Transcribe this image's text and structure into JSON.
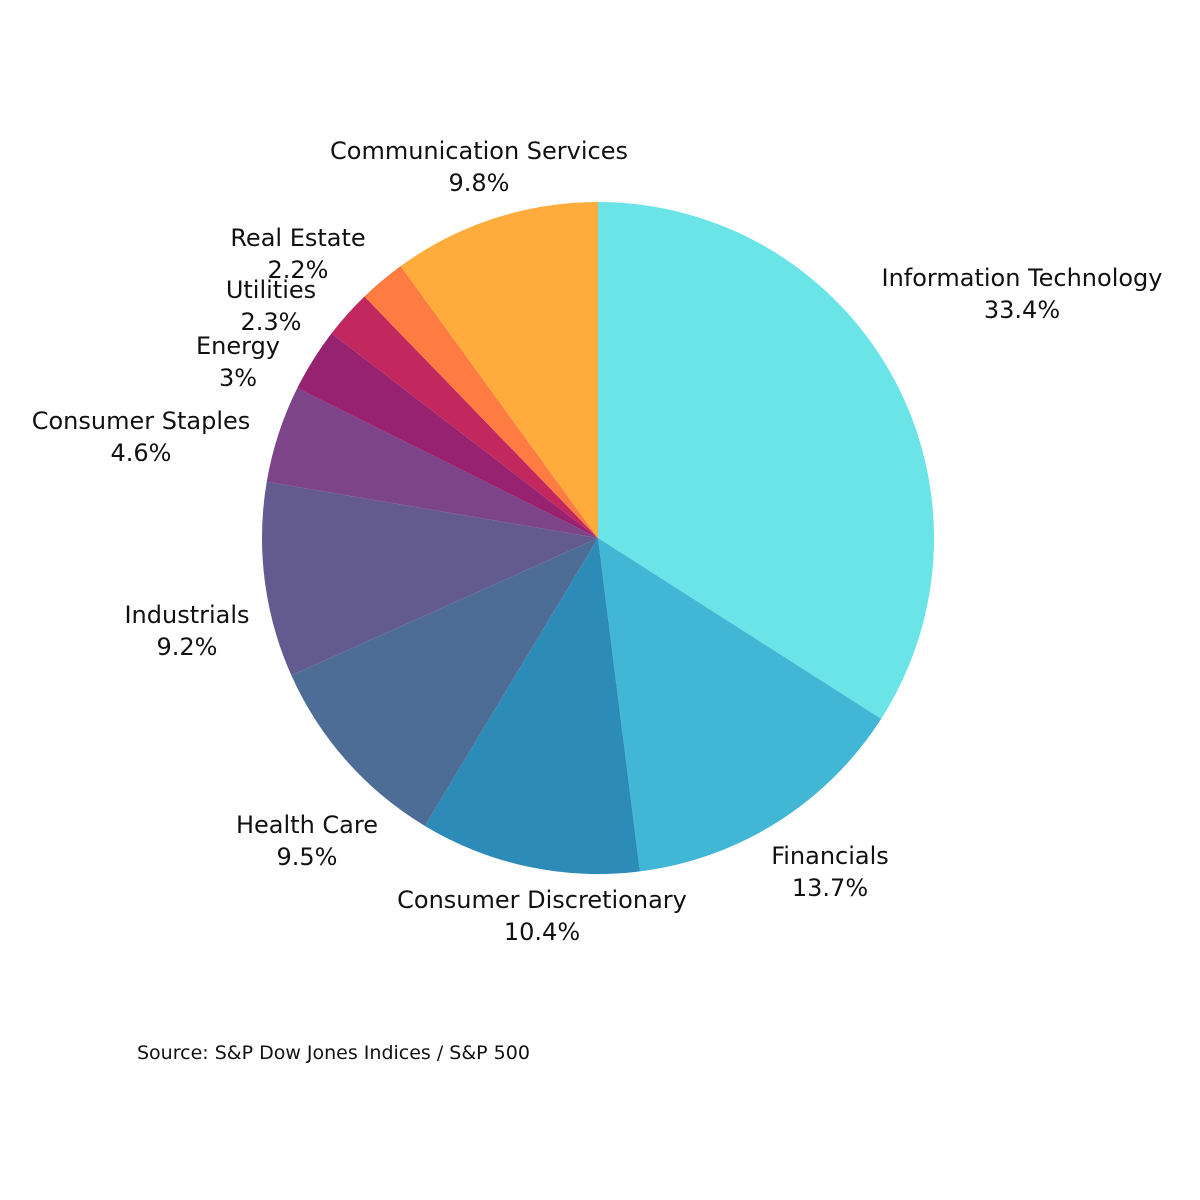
{
  "chart_data": {
    "type": "pie",
    "title": "",
    "start": "12 o'clock",
    "direction": "clockwise",
    "slices": [
      {
        "label": "Information Technology",
        "value": 33.4,
        "value_label": "33.4%",
        "color": "#6ae4e6"
      },
      {
        "label": "Financials",
        "value": 13.7,
        "value_label": "13.7%",
        "color": "#42b7d5"
      },
      {
        "label": "Consumer Discretionary",
        "value": 10.4,
        "value_label": "10.4%",
        "color": "#2d8bb8"
      },
      {
        "label": "Health Care",
        "value": 9.5,
        "value_label": "9.5%",
        "color": "#4d6d96"
      },
      {
        "label": "Industrials",
        "value": 9.2,
        "value_label": "9.2%",
        "color": "#635b8f"
      },
      {
        "label": "Consumer Staples",
        "value": 4.6,
        "value_label": "4.6%",
        "color": "#7d4489"
      },
      {
        "label": "Energy",
        "value": 3,
        "value_label": "3%",
        "color": "#962270"
      },
      {
        "label": "Utilities",
        "value": 2.3,
        "value_label": "2.3%",
        "color": "#c2285e"
      },
      {
        "label": "Real Estate",
        "value": 2.2,
        "value_label": "2.2%",
        "color": "#e84d58"
      },
      {
        "label": "Communication Services",
        "value": 9.8,
        "value_label": "9.8%",
        "color": "#fe7c42"
      }
    ],
    "last_slice_color": "#ffac3c",
    "legend": "none (labels beside slices)"
  },
  "source": "Source: S&P Dow Jones Indices / S&P 500"
}
